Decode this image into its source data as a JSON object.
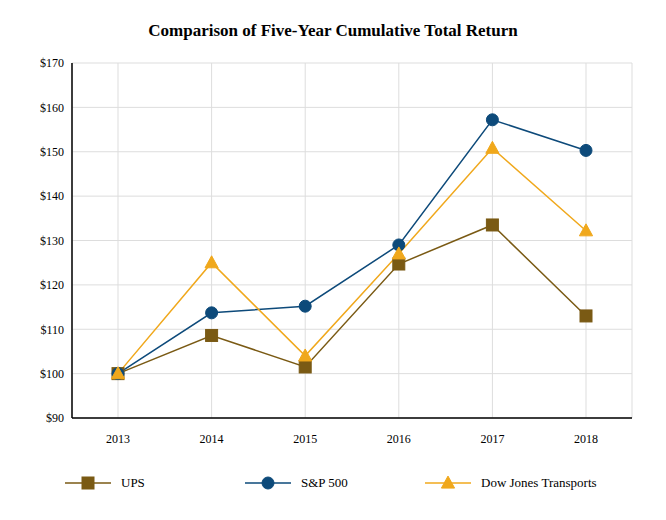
{
  "chart_data": {
    "type": "line",
    "title": "Comparison of Five-Year Cumulative Total Return",
    "categories": [
      "2013",
      "2014",
      "2015",
      "2016",
      "2017",
      "2018"
    ],
    "series": [
      {
        "name": "UPS",
        "color": "#7a5a14",
        "marker": "square",
        "values": [
          100,
          108.6,
          101.5,
          124.7,
          133.5,
          113.0
        ]
      },
      {
        "name": "S&P 500",
        "color": "#0d4a7a",
        "marker": "circle",
        "values": [
          100,
          113.7,
          115.2,
          129.0,
          157.2,
          150.3
        ]
      },
      {
        "name": "Dow Jones Transports",
        "color": "#f0a81c",
        "marker": "triangle",
        "values": [
          100,
          125.0,
          104.0,
          127.0,
          150.8,
          132.2
        ]
      }
    ],
    "ylim": [
      90,
      170
    ],
    "yticks": [
      {
        "value": 90,
        "label": "$90"
      },
      {
        "value": 100,
        "label": "$100"
      },
      {
        "value": 110,
        "label": "$110"
      },
      {
        "value": 120,
        "label": "$120"
      },
      {
        "value": 130,
        "label": "$130"
      },
      {
        "value": 140,
        "label": "$140"
      },
      {
        "value": 150,
        "label": "$150"
      },
      {
        "value": 160,
        "label": "$160"
      },
      {
        "value": 170,
        "label": "$170"
      }
    ],
    "grid": true
  }
}
